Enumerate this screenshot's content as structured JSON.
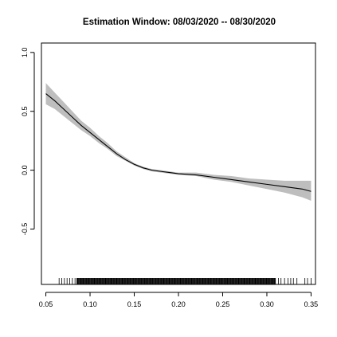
{
  "chart_data": {
    "type": "line",
    "title": "Estimation Window: 08/03/2020 -- 08/30/2020",
    "xlabel": "",
    "ylabel": "",
    "xlim": [
      0.045,
      0.355
    ],
    "ylim": [
      -0.97,
      1.08
    ],
    "x_ticks": [
      "0.05",
      "0.10",
      "0.15",
      "0.20",
      "0.25",
      "0.30",
      "0.35"
    ],
    "y_ticks": [
      "-0.5",
      "0.0",
      "0.5",
      "1.0"
    ],
    "grid": false,
    "legend": "none",
    "series": [
      {
        "x": [
          0.05,
          0.06,
          0.07,
          0.08,
          0.09,
          0.1,
          0.11,
          0.12,
          0.13,
          0.14,
          0.15,
          0.16,
          0.17,
          0.18,
          0.19,
          0.2,
          0.22,
          0.24,
          0.26,
          0.28,
          0.3,
          0.32,
          0.34,
          0.35
        ],
        "y": [
          0.65,
          0.59,
          0.52,
          0.45,
          0.38,
          0.32,
          0.26,
          0.2,
          0.14,
          0.09,
          0.05,
          0.02,
          0.0,
          -0.01,
          -0.02,
          -0.03,
          -0.04,
          -0.06,
          -0.08,
          -0.1,
          -0.12,
          -0.14,
          -0.16,
          -0.18
        ],
        "lower": [
          0.56,
          0.52,
          0.46,
          0.4,
          0.34,
          0.29,
          0.23,
          0.18,
          0.12,
          0.08,
          0.04,
          0.01,
          -0.01,
          -0.02,
          -0.03,
          -0.04,
          -0.05,
          -0.08,
          -0.1,
          -0.13,
          -0.16,
          -0.19,
          -0.23,
          -0.26
        ],
        "upper": [
          0.74,
          0.66,
          0.58,
          0.5,
          0.42,
          0.36,
          0.29,
          0.23,
          0.16,
          0.11,
          0.06,
          0.03,
          0.01,
          0.0,
          -0.01,
          -0.02,
          -0.02,
          -0.04,
          -0.05,
          -0.07,
          -0.08,
          -0.09,
          -0.09,
          -0.09
        ]
      }
    ],
    "rug": {
      "x_min": 0.065,
      "x_max": 0.35,
      "dense_start": 0.085,
      "dense_end": 0.31,
      "sparse_left": [
        0.065,
        0.068,
        0.071,
        0.074,
        0.077,
        0.08,
        0.083
      ],
      "sparse_right": [
        0.313,
        0.316,
        0.32,
        0.324,
        0.327,
        0.33,
        0.334,
        0.343,
        0.346,
        0.35
      ]
    },
    "colors": {
      "line": "#000000",
      "band": "#bebebe"
    }
  }
}
